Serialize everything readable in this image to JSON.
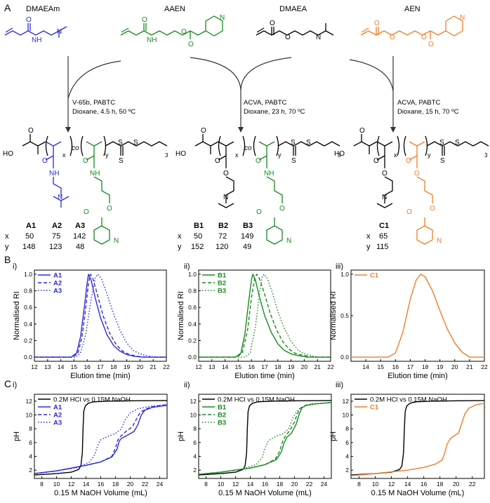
{
  "panel_letters": {
    "A": "A",
    "B": "B",
    "C": "C"
  },
  "colors": {
    "A": "#2b2bd8",
    "B": "#178a1e",
    "C": "#f07d2a",
    "ref": "#000000"
  },
  "scheme": {
    "monomers": [
      {
        "name": "DMAEAm",
        "color": "#2b2bd8"
      },
      {
        "name": "AAEN",
        "color": "#178a1e"
      },
      {
        "name": "DMAEA",
        "color": "#000000"
      },
      {
        "name": "AEN",
        "color": "#f07d2a"
      }
    ],
    "conditions": [
      {
        "line1": "V-65b, PABTC",
        "line2": "Dioxane, 4.5 h, 50 ºC"
      },
      {
        "line1": "ACVA, PABTC",
        "line2": "Dioxane, 23 h, 70 ºC"
      },
      {
        "line1": "ACVA, PABTC",
        "line2": "Dioxane, 15 h, 70 ºC"
      }
    ],
    "atom_labels": {
      "HO": "HO",
      "O": "O",
      "NH": "NH",
      "N": "N",
      "S": "S",
      "co": "co",
      "x": "x",
      "y": "y",
      "sub3": "3"
    },
    "tables": [
      {
        "ids": [
          "A1",
          "A2",
          "A3"
        ],
        "x": [
          "50",
          "75",
          "142"
        ],
        "y": [
          "148",
          "123",
          "48"
        ]
      },
      {
        "ids": [
          "B1",
          "B2",
          "B3"
        ],
        "x": [
          "50",
          "72",
          "149"
        ],
        "y": [
          "152",
          "120",
          "49"
        ]
      },
      {
        "ids": [
          "C1"
        ],
        "x": [
          "65"
        ],
        "y": [
          "115"
        ]
      }
    ],
    "row_labels": {
      "x": "x",
      "y": "y"
    }
  },
  "chart_data": [
    {
      "id": "B-i",
      "roman": "i)",
      "type": "line",
      "xlabel": "Elution time (min)",
      "ylabel": "Normalised RI",
      "xlim": [
        12,
        22
      ],
      "ylim": [
        -0.05,
        1.05
      ],
      "xticks": [
        12,
        13,
        14,
        15,
        16,
        17,
        18,
        19,
        20,
        21,
        22
      ],
      "yticks": [
        0.0,
        0.2,
        0.4,
        0.6,
        0.8,
        1.0
      ],
      "yticklabels": [
        "0.0",
        "0.2",
        "0.4",
        "0.6",
        "0.8",
        "1.0"
      ],
      "legend": "top-left",
      "series": [
        {
          "name": "A1",
          "color": "#2b2bd8",
          "dash": "solid",
          "x": [
            12,
            14.8,
            15.2,
            15.5,
            15.8,
            16.0,
            16.1,
            16.3,
            16.6,
            17.0,
            17.5,
            18.0,
            18.5,
            19.0,
            19.6,
            20.2,
            22
          ],
          "y": [
            0,
            0,
            0.05,
            0.25,
            0.62,
            0.9,
            1.0,
            0.93,
            0.72,
            0.48,
            0.27,
            0.14,
            0.07,
            0.03,
            0.01,
            0,
            0
          ]
        },
        {
          "name": "A2",
          "color": "#2b2bd8",
          "dash": "dashed",
          "x": [
            12,
            14.9,
            15.3,
            15.6,
            15.9,
            16.1,
            16.25,
            16.45,
            16.8,
            17.2,
            17.7,
            18.2,
            18.7,
            19.2,
            19.8,
            20.4,
            22
          ],
          "y": [
            0,
            0,
            0.05,
            0.24,
            0.6,
            0.9,
            1.0,
            0.94,
            0.74,
            0.5,
            0.29,
            0.15,
            0.07,
            0.03,
            0.01,
            0,
            0
          ]
        },
        {
          "name": "A3",
          "color": "#2b2bd8",
          "dash": "dotted",
          "x": [
            12,
            15.1,
            15.5,
            15.9,
            16.3,
            16.6,
            16.8,
            17.1,
            17.5,
            18.0,
            18.5,
            19.0,
            19.5,
            20.0,
            20.5,
            21.0,
            22
          ],
          "y": [
            0,
            0,
            0.05,
            0.28,
            0.7,
            0.95,
            1.0,
            0.94,
            0.76,
            0.52,
            0.32,
            0.17,
            0.08,
            0.04,
            0.02,
            0,
            0
          ]
        }
      ]
    },
    {
      "id": "B-ii",
      "roman": "ii)",
      "type": "line",
      "xlabel": "Elution time (min)",
      "ylabel": "Normalised RI",
      "xlim": [
        12,
        22
      ],
      "ylim": [
        -0.05,
        1.05
      ],
      "xticks": [
        12,
        13,
        14,
        15,
        16,
        17,
        18,
        19,
        20,
        21,
        22
      ],
      "yticks": [
        0.0,
        0.2,
        0.4,
        0.6,
        0.8,
        1.0
      ],
      "yticklabels": [
        "0.0",
        "0.2",
        "0.4",
        "0.6",
        "0.8",
        "1.0"
      ],
      "legend": "top-left",
      "series": [
        {
          "name": "B1",
          "color": "#178a1e",
          "dash": "solid",
          "x": [
            12,
            14.8,
            15.2,
            15.5,
            15.8,
            16.0,
            16.1,
            16.3,
            16.6,
            17.0,
            17.5,
            18.0,
            18.5,
            19.0,
            19.5,
            20.2,
            22
          ],
          "y": [
            0,
            0,
            0.05,
            0.28,
            0.68,
            0.93,
            1.0,
            0.93,
            0.73,
            0.5,
            0.3,
            0.16,
            0.08,
            0.04,
            0.02,
            0,
            0
          ]
        },
        {
          "name": "B2",
          "color": "#178a1e",
          "dash": "dashed",
          "x": [
            12,
            14.9,
            15.3,
            15.7,
            16.0,
            16.25,
            16.4,
            16.6,
            17.0,
            17.4,
            17.9,
            18.4,
            18.9,
            19.4,
            20.0,
            20.6,
            22
          ],
          "y": [
            0,
            0,
            0.05,
            0.32,
            0.72,
            0.95,
            1.0,
            0.95,
            0.76,
            0.54,
            0.33,
            0.18,
            0.09,
            0.04,
            0.02,
            0,
            0
          ]
        },
        {
          "name": "B3",
          "color": "#178a1e",
          "dash": "dotted",
          "x": [
            12,
            15.5,
            15.9,
            16.3,
            16.6,
            16.8,
            16.95,
            17.2,
            17.6,
            18.0,
            18.5,
            19.0,
            19.5,
            20.0,
            20.5,
            21.0,
            22
          ],
          "y": [
            0,
            0,
            0.05,
            0.36,
            0.76,
            0.96,
            1.0,
            0.95,
            0.77,
            0.55,
            0.34,
            0.19,
            0.09,
            0.04,
            0.02,
            0,
            0
          ]
        }
      ]
    },
    {
      "id": "B-iii",
      "roman": "iii)",
      "type": "line",
      "xlabel": "Elution time (min)",
      "ylabel": "Normalised RI",
      "xlim": [
        13,
        22
      ],
      "ylim": [
        -0.05,
        1.05
      ],
      "xticks": [
        14,
        15,
        16,
        17,
        18,
        19,
        20,
        21,
        22
      ],
      "yticks": [
        0.0,
        0.5,
        1.0
      ],
      "yticklabels": [
        "0.0",
        "0.5",
        "1.0"
      ],
      "legend": "top-left",
      "series": [
        {
          "name": "C1",
          "color": "#f07d2a",
          "dash": "solid",
          "x": [
            13,
            15.5,
            16.0,
            16.5,
            17.0,
            17.4,
            17.7,
            18.0,
            18.5,
            19.0,
            19.5,
            20.0,
            20.5,
            21.0,
            22
          ],
          "y": [
            0,
            0,
            0.05,
            0.3,
            0.7,
            0.93,
            1.0,
            0.97,
            0.8,
            0.56,
            0.34,
            0.17,
            0.06,
            0,
            0
          ]
        }
      ]
    },
    {
      "id": "C-i",
      "roman": "i)",
      "type": "line",
      "xlabel": "0.15 M NaOH Volume (mL)",
      "ylabel": "pH",
      "xlim": [
        7,
        25
      ],
      "ylim": [
        0.8,
        13
      ],
      "xticks": [
        8,
        10,
        12,
        14,
        16,
        18,
        20,
        22,
        24
      ],
      "yticks": [
        2,
        4,
        6,
        8,
        10,
        12
      ],
      "yticklabels": [
        "2",
        "4",
        "6",
        "8",
        "10",
        "12"
      ],
      "legend": "top-left",
      "series": [
        {
          "name": "0.2M HCl vs 0.15M NaOH",
          "color": "#000000",
          "dash": "solid",
          "x": [
            7,
            10,
            12,
            13,
            13.3,
            13.5,
            13.6,
            13.7,
            13.9,
            14.3,
            15,
            17,
            20,
            25
          ],
          "y": [
            1.3,
            1.5,
            1.7,
            2.1,
            2.6,
            4.5,
            8,
            10.5,
            11.3,
            11.7,
            11.9,
            12.0,
            12.05,
            12.1
          ]
        },
        {
          "name": "A1",
          "color": "#2b2bd8",
          "dash": "solid",
          "x": [
            7,
            10,
            14,
            16,
            17.5,
            18.2,
            18.5,
            18.8,
            19.5,
            20.5,
            21,
            21.5,
            22,
            23,
            25
          ],
          "y": [
            1.5,
            1.9,
            2.7,
            3.2,
            3.9,
            5.0,
            6.2,
            6.6,
            7.0,
            7.6,
            8.5,
            10.0,
            10.7,
            11.1,
            11.4
          ]
        },
        {
          "name": "A2",
          "color": "#2b2bd8",
          "dash": "dashed",
          "x": [
            7,
            10,
            14,
            16,
            17.5,
            18.0,
            18.3,
            18.6,
            19.3,
            20.3,
            20.8,
            21.3,
            22,
            23,
            25
          ],
          "y": [
            1.5,
            1.9,
            2.7,
            3.2,
            4.0,
            5.2,
            6.3,
            6.8,
            7.5,
            8.3,
            9.3,
            10.3,
            10.8,
            11.2,
            11.5
          ]
        },
        {
          "name": "A3",
          "color": "#2b2bd8",
          "dash": "dotted",
          "x": [
            7,
            10,
            13,
            14.5,
            15.2,
            15.6,
            16.0,
            17.0,
            18.0,
            18.8,
            19.3,
            20,
            21,
            23,
            25
          ],
          "y": [
            1.5,
            1.9,
            2.4,
            3.2,
            4.3,
            5.6,
            6.4,
            6.9,
            7.3,
            8.0,
            9.3,
            10.3,
            10.9,
            11.3,
            11.5
          ]
        }
      ]
    },
    {
      "id": "C-ii",
      "roman": "ii)",
      "type": "line",
      "xlabel": "0.15 M NaOH Volume (mL)",
      "ylabel": "pH",
      "xlim": [
        7,
        25
      ],
      "ylim": [
        0.8,
        13
      ],
      "xticks": [
        8,
        10,
        12,
        14,
        16,
        18,
        20,
        22,
        24
      ],
      "yticks": [
        2,
        4,
        6,
        8,
        10,
        12
      ],
      "yticklabels": [
        "2",
        "4",
        "6",
        "8",
        "10",
        "12"
      ],
      "legend": "top-left",
      "series": [
        {
          "name": "0.2M HCl vs 0.15M NaOH",
          "color": "#000000",
          "dash": "solid",
          "x": [
            7,
            10,
            12,
            13,
            13.3,
            13.5,
            13.6,
            13.7,
            13.9,
            14.3,
            15,
            17,
            20,
            25
          ],
          "y": [
            1.3,
            1.5,
            1.7,
            2.1,
            2.6,
            4.5,
            8,
            10.5,
            11.3,
            11.7,
            11.9,
            12.0,
            12.05,
            12.1
          ]
        },
        {
          "name": "B1",
          "color": "#178a1e",
          "dash": "solid",
          "x": [
            7,
            10,
            14,
            16,
            17.5,
            18.2,
            18.6,
            19.0,
            19.6,
            20.2,
            20.6,
            21.0,
            21.5,
            22.5,
            25
          ],
          "y": [
            1.4,
            1.7,
            2.3,
            2.8,
            3.5,
            4.6,
            6.0,
            6.8,
            7.4,
            8.6,
            10.0,
            11.0,
            11.4,
            11.6,
            11.8
          ]
        },
        {
          "name": "B2",
          "color": "#178a1e",
          "dash": "dashed",
          "x": [
            7,
            10,
            14,
            16,
            17.4,
            18.0,
            18.4,
            18.8,
            19.4,
            20.0,
            20.4,
            20.8,
            21.5,
            22.5,
            25
          ],
          "y": [
            1.4,
            1.7,
            2.3,
            2.8,
            3.6,
            4.8,
            6.2,
            7.0,
            7.8,
            9.0,
            10.2,
            11.0,
            11.4,
            11.6,
            11.8
          ]
        },
        {
          "name": "B3",
          "color": "#178a1e",
          "dash": "dotted",
          "x": [
            7,
            10,
            13,
            14.8,
            15.6,
            16.0,
            16.5,
            17.5,
            18.5,
            19.2,
            19.8,
            20.5,
            21.5,
            23,
            25
          ],
          "y": [
            1.4,
            1.7,
            2.2,
            2.8,
            3.8,
            5.2,
            6.3,
            6.9,
            7.3,
            8.0,
            9.6,
            10.8,
            11.3,
            11.6,
            11.8
          ]
        }
      ]
    },
    {
      "id": "C-iii",
      "roman": "iii)",
      "type": "line",
      "xlabel": "0.15 M NaOH Volume (mL)",
      "ylabel": "pH",
      "xlim": [
        7,
        23.5
      ],
      "ylim": [
        0.8,
        13
      ],
      "xticks": [
        8,
        10,
        12,
        14,
        16,
        18,
        20,
        22
      ],
      "yticks": [
        2,
        4,
        6,
        8,
        10,
        12
      ],
      "yticklabels": [
        "2",
        "4",
        "6",
        "8",
        "10",
        "12"
      ],
      "legend": "top-left",
      "series": [
        {
          "name": "0.2M HCl vs 0.15M NaOH",
          "color": "#000000",
          "dash": "solid",
          "x": [
            7,
            10,
            12,
            13,
            13.3,
            13.5,
            13.6,
            13.7,
            13.9,
            14.3,
            15,
            17,
            20,
            23.5
          ],
          "y": [
            1.3,
            1.5,
            1.7,
            2.1,
            2.6,
            4.5,
            8,
            10.5,
            11.3,
            11.7,
            11.9,
            12.0,
            12.05,
            12.1
          ]
        },
        {
          "name": "C1",
          "color": "#f07d2a",
          "dash": "solid",
          "x": [
            7,
            10,
            14,
            16,
            17.5,
            18.3,
            18.6,
            18.9,
            19.3,
            19.8,
            20.3,
            20.7,
            21.1,
            21.6,
            22.5,
            23.5
          ],
          "y": [
            1.2,
            1.5,
            2.0,
            2.4,
            2.9,
            3.5,
            4.5,
            5.8,
            6.6,
            7.0,
            7.4,
            8.8,
            10.2,
            11.0,
            11.5,
            11.7
          ]
        }
      ]
    }
  ]
}
